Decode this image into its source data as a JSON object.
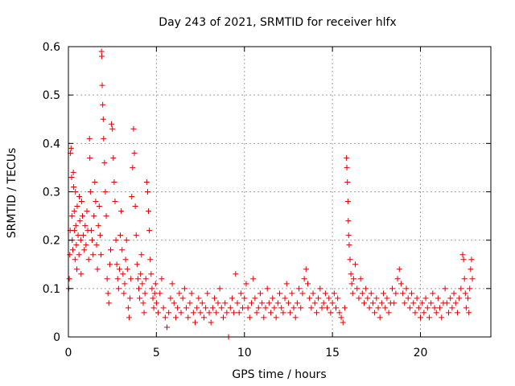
{
  "chart_data": {
    "type": "scatter",
    "title": "Day 243 of 2021, SRMTID for receiver hlfx",
    "xlabel": "GPS time / hours",
    "ylabel": "SRMTID / TECUs",
    "xlim": [
      0,
      24
    ],
    "ylim": [
      0,
      0.6
    ],
    "xticks": [
      0,
      5,
      10,
      15,
      20
    ],
    "xtick_labels": [
      "0",
      "5",
      "10",
      "15",
      "20"
    ],
    "yticks": [
      0,
      0.1,
      0.2,
      0.3,
      0.4,
      0.5,
      0.6
    ],
    "ytick_labels": [
      "0",
      "0.1",
      "0.2",
      "0.3",
      "0.4",
      "0.5",
      "0.6"
    ],
    "grid": true,
    "marker": "+",
    "color": "#e00000",
    "series": [
      {
        "name": "SRMTID",
        "points": [
          [
            0.02,
            0.1
          ],
          [
            0.05,
            0.12
          ],
          [
            0.08,
            0.17
          ],
          [
            0.1,
            0.22
          ],
          [
            0.12,
            0.38
          ],
          [
            0.15,
            0.39
          ],
          [
            0.18,
            0.33
          ],
          [
            0.2,
            0.25
          ],
          [
            0.22,
            0.2
          ],
          [
            0.25,
            0.18
          ],
          [
            0.28,
            0.34
          ],
          [
            0.3,
            0.31
          ],
          [
            0.33,
            0.26
          ],
          [
            0.35,
            0.22
          ],
          [
            0.38,
            0.16
          ],
          [
            0.4,
            0.3
          ],
          [
            0.42,
            0.23
          ],
          [
            0.45,
            0.19
          ],
          [
            0.48,
            0.14
          ],
          [
            0.5,
            0.27
          ],
          [
            0.55,
            0.21
          ],
          [
            0.6,
            0.17
          ],
          [
            0.62,
            0.29
          ],
          [
            0.65,
            0.24
          ],
          [
            0.7,
            0.2
          ],
          [
            0.72,
            0.13
          ],
          [
            0.75,
            0.28
          ],
          [
            0.8,
            0.25
          ],
          [
            0.85,
            0.21
          ],
          [
            0.9,
            0.18
          ],
          [
            0.95,
            0.23
          ],
          [
            1.0,
            0.19
          ],
          [
            1.05,
            0.26
          ],
          [
            1.1,
            0.22
          ],
          [
            1.15,
            0.16
          ],
          [
            1.2,
            0.41
          ],
          [
            1.22,
            0.37
          ],
          [
            1.25,
            0.3
          ],
          [
            1.3,
            0.22
          ],
          [
            1.35,
            0.2
          ],
          [
            1.4,
            0.17
          ],
          [
            1.45,
            0.25
          ],
          [
            1.5,
            0.32
          ],
          [
            1.55,
            0.28
          ],
          [
            1.6,
            0.19
          ],
          [
            1.65,
            0.14
          ],
          [
            1.7,
            0.23
          ],
          [
            1.75,
            0.27
          ],
          [
            1.8,
            0.21
          ],
          [
            1.85,
            0.17
          ],
          [
            1.88,
            0.59
          ],
          [
            1.9,
            0.58
          ],
          [
            1.92,
            0.52
          ],
          [
            1.95,
            0.48
          ],
          [
            1.98,
            0.45
          ],
          [
            2.0,
            0.41
          ],
          [
            2.05,
            0.36
          ],
          [
            2.1,
            0.3
          ],
          [
            2.15,
            0.25
          ],
          [
            2.2,
            0.12
          ],
          [
            2.25,
            0.09
          ],
          [
            2.3,
            0.07
          ],
          [
            2.35,
            0.15
          ],
          [
            2.4,
            0.18
          ],
          [
            2.45,
            0.44
          ],
          [
            2.5,
            0.43
          ],
          [
            2.55,
            0.37
          ],
          [
            2.6,
            0.32
          ],
          [
            2.65,
            0.28
          ],
          [
            2.7,
            0.2
          ],
          [
            2.75,
            0.15
          ],
          [
            2.8,
            0.12
          ],
          [
            2.85,
            0.1
          ],
          [
            2.9,
            0.14
          ],
          [
            2.95,
            0.21
          ],
          [
            3.0,
            0.26
          ],
          [
            3.05,
            0.18
          ],
          [
            3.1,
            0.13
          ],
          [
            3.15,
            0.09
          ],
          [
            3.2,
            0.11
          ],
          [
            3.25,
            0.16
          ],
          [
            3.3,
            0.2
          ],
          [
            3.35,
            0.14
          ],
          [
            3.4,
            0.06
          ],
          [
            3.45,
            0.04
          ],
          [
            3.5,
            0.08
          ],
          [
            3.55,
            0.12
          ],
          [
            3.6,
            0.29
          ],
          [
            3.65,
            0.35
          ],
          [
            3.7,
            0.43
          ],
          [
            3.75,
            0.38
          ],
          [
            3.8,
            0.27
          ],
          [
            3.85,
            0.21
          ],
          [
            3.9,
            0.15
          ],
          [
            3.95,
            0.12
          ],
          [
            4.0,
            0.1
          ],
          [
            4.05,
            0.08
          ],
          [
            4.1,
            0.13
          ],
          [
            4.15,
            0.17
          ],
          [
            4.2,
            0.11
          ],
          [
            4.25,
            0.07
          ],
          [
            4.3,
            0.05
          ],
          [
            4.35,
            0.09
          ],
          [
            4.4,
            0.12
          ],
          [
            4.45,
            0.32
          ],
          [
            4.5,
            0.3
          ],
          [
            4.55,
            0.26
          ],
          [
            4.6,
            0.22
          ],
          [
            4.65,
            0.16
          ],
          [
            4.7,
            0.13
          ],
          [
            4.75,
            0.1
          ],
          [
            4.8,
            0.08
          ],
          [
            4.85,
            0.06
          ],
          [
            4.9,
            0.09
          ],
          [
            4.95,
            0.11
          ],
          [
            5.0,
            0.07
          ],
          [
            5.1,
            0.05
          ],
          [
            5.2,
            0.09
          ],
          [
            5.3,
            0.12
          ],
          [
            5.4,
            0.06
          ],
          [
            5.5,
            0.04
          ],
          [
            5.6,
            0.02
          ],
          [
            5.7,
            0.05
          ],
          [
            5.8,
            0.08
          ],
          [
            5.9,
            0.11
          ],
          [
            6.0,
            0.07
          ],
          [
            6.1,
            0.04
          ],
          [
            6.2,
            0.06
          ],
          [
            6.3,
            0.09
          ],
          [
            6.4,
            0.05
          ],
          [
            6.5,
            0.08
          ],
          [
            6.6,
            0.1
          ],
          [
            6.7,
            0.06
          ],
          [
            6.8,
            0.04
          ],
          [
            6.9,
            0.07
          ],
          [
            7.0,
            0.09
          ],
          [
            7.1,
            0.05
          ],
          [
            7.2,
            0.03
          ],
          [
            7.3,
            0.06
          ],
          [
            7.4,
            0.08
          ],
          [
            7.5,
            0.05
          ],
          [
            7.6,
            0.07
          ],
          [
            7.7,
            0.04
          ],
          [
            7.8,
            0.06
          ],
          [
            7.9,
            0.09
          ],
          [
            8.0,
            0.05
          ],
          [
            8.1,
            0.03
          ],
          [
            8.2,
            0.06
          ],
          [
            8.3,
            0.08
          ],
          [
            8.4,
            0.05
          ],
          [
            8.5,
            0.07
          ],
          [
            8.6,
            0.1
          ],
          [
            8.7,
            0.06
          ],
          [
            8.8,
            0.04
          ],
          [
            8.9,
            0.07
          ],
          [
            9.0,
            0.05
          ],
          [
            9.1,
            0.0
          ],
          [
            9.2,
            0.06
          ],
          [
            9.3,
            0.08
          ],
          [
            9.4,
            0.05
          ],
          [
            9.5,
            0.13
          ],
          [
            9.6,
            0.07
          ],
          [
            9.7,
            0.05
          ],
          [
            9.8,
            0.09
          ],
          [
            9.9,
            0.06
          ],
          [
            10.0,
            0.08
          ],
          [
            10.1,
            0.11
          ],
          [
            10.2,
            0.06
          ],
          [
            10.3,
            0.04
          ],
          [
            10.4,
            0.07
          ],
          [
            10.5,
            0.12
          ],
          [
            10.6,
            0.08
          ],
          [
            10.7,
            0.05
          ],
          [
            10.8,
            0.06
          ],
          [
            10.9,
            0.09
          ],
          [
            11.0,
            0.07
          ],
          [
            11.1,
            0.04
          ],
          [
            11.2,
            0.06
          ],
          [
            11.3,
            0.1
          ],
          [
            11.4,
            0.07
          ],
          [
            11.5,
            0.05
          ],
          [
            11.6,
            0.08
          ],
          [
            11.7,
            0.06
          ],
          [
            11.8,
            0.04
          ],
          [
            11.9,
            0.07
          ],
          [
            12.0,
            0.09
          ],
          [
            12.1,
            0.06
          ],
          [
            12.2,
            0.05
          ],
          [
            12.3,
            0.08
          ],
          [
            12.4,
            0.11
          ],
          [
            12.5,
            0.07
          ],
          [
            12.6,
            0.05
          ],
          [
            12.7,
            0.09
          ],
          [
            12.8,
            0.06
          ],
          [
            12.9,
            0.04
          ],
          [
            13.0,
            0.07
          ],
          [
            13.1,
            0.1
          ],
          [
            13.2,
            0.06
          ],
          [
            13.3,
            0.09
          ],
          [
            13.4,
            0.12
          ],
          [
            13.5,
            0.14
          ],
          [
            13.6,
            0.11
          ],
          [
            13.7,
            0.08
          ],
          [
            13.8,
            0.06
          ],
          [
            13.9,
            0.09
          ],
          [
            14.0,
            0.07
          ],
          [
            14.1,
            0.05
          ],
          [
            14.2,
            0.08
          ],
          [
            14.3,
            0.1
          ],
          [
            14.4,
            0.06
          ],
          [
            14.5,
            0.07
          ],
          [
            14.6,
            0.09
          ],
          [
            14.7,
            0.06
          ],
          [
            14.8,
            0.08
          ],
          [
            14.9,
            0.05
          ],
          [
            15.0,
            0.07
          ],
          [
            15.1,
            0.09
          ],
          [
            15.2,
            0.06
          ],
          [
            15.3,
            0.08
          ],
          [
            15.4,
            0.05
          ],
          [
            15.5,
            0.04
          ],
          [
            15.6,
            0.03
          ],
          [
            15.7,
            0.06
          ],
          [
            15.8,
            0.37
          ],
          [
            15.82,
            0.35
          ],
          [
            15.85,
            0.32
          ],
          [
            15.88,
            0.28
          ],
          [
            15.9,
            0.24
          ],
          [
            15.92,
            0.21
          ],
          [
            15.95,
            0.19
          ],
          [
            16.0,
            0.16
          ],
          [
            16.05,
            0.13
          ],
          [
            16.1,
            0.11
          ],
          [
            16.15,
            0.09
          ],
          [
            16.2,
            0.12
          ],
          [
            16.3,
            0.15
          ],
          [
            16.4,
            0.1
          ],
          [
            16.5,
            0.08
          ],
          [
            16.6,
            0.12
          ],
          [
            16.7,
            0.09
          ],
          [
            16.8,
            0.07
          ],
          [
            16.9,
            0.1
          ],
          [
            17.0,
            0.08
          ],
          [
            17.1,
            0.06
          ],
          [
            17.2,
            0.09
          ],
          [
            17.3,
            0.07
          ],
          [
            17.4,
            0.05
          ],
          [
            17.5,
            0.08
          ],
          [
            17.6,
            0.06
          ],
          [
            17.7,
            0.04
          ],
          [
            17.8,
            0.07
          ],
          [
            17.9,
            0.09
          ],
          [
            18.0,
            0.06
          ],
          [
            18.1,
            0.08
          ],
          [
            18.2,
            0.05
          ],
          [
            18.3,
            0.07
          ],
          [
            18.4,
            0.1
          ],
          [
            18.5,
            0.07
          ],
          [
            18.6,
            0.09
          ],
          [
            18.7,
            0.12
          ],
          [
            18.8,
            0.14
          ],
          [
            18.9,
            0.11
          ],
          [
            19.0,
            0.09
          ],
          [
            19.1,
            0.07
          ],
          [
            19.2,
            0.1
          ],
          [
            19.3,
            0.08
          ],
          [
            19.4,
            0.06
          ],
          [
            19.5,
            0.09
          ],
          [
            19.6,
            0.07
          ],
          [
            19.7,
            0.05
          ],
          [
            19.8,
            0.08
          ],
          [
            19.9,
            0.06
          ],
          [
            20.0,
            0.04
          ],
          [
            20.1,
            0.07
          ],
          [
            20.2,
            0.05
          ],
          [
            20.3,
            0.08
          ],
          [
            20.4,
            0.06
          ],
          [
            20.5,
            0.04
          ],
          [
            20.6,
            0.07
          ],
          [
            20.7,
            0.09
          ],
          [
            20.8,
            0.06
          ],
          [
            20.9,
            0.05
          ],
          [
            21.0,
            0.08
          ],
          [
            21.1,
            0.06
          ],
          [
            21.2,
            0.04
          ],
          [
            21.3,
            0.07
          ],
          [
            21.4,
            0.1
          ],
          [
            21.5,
            0.07
          ],
          [
            21.6,
            0.05
          ],
          [
            21.7,
            0.08
          ],
          [
            21.8,
            0.06
          ],
          [
            21.9,
            0.09
          ],
          [
            22.0,
            0.07
          ],
          [
            22.1,
            0.05
          ],
          [
            22.2,
            0.08
          ],
          [
            22.3,
            0.1
          ],
          [
            22.4,
            0.17
          ],
          [
            22.45,
            0.16
          ],
          [
            22.5,
            0.12
          ],
          [
            22.55,
            0.09
          ],
          [
            22.6,
            0.06
          ],
          [
            22.7,
            0.08
          ],
          [
            22.75,
            0.05
          ],
          [
            22.8,
            0.1
          ],
          [
            22.85,
            0.14
          ],
          [
            22.9,
            0.16
          ],
          [
            22.95,
            0.12
          ]
        ]
      }
    ]
  }
}
